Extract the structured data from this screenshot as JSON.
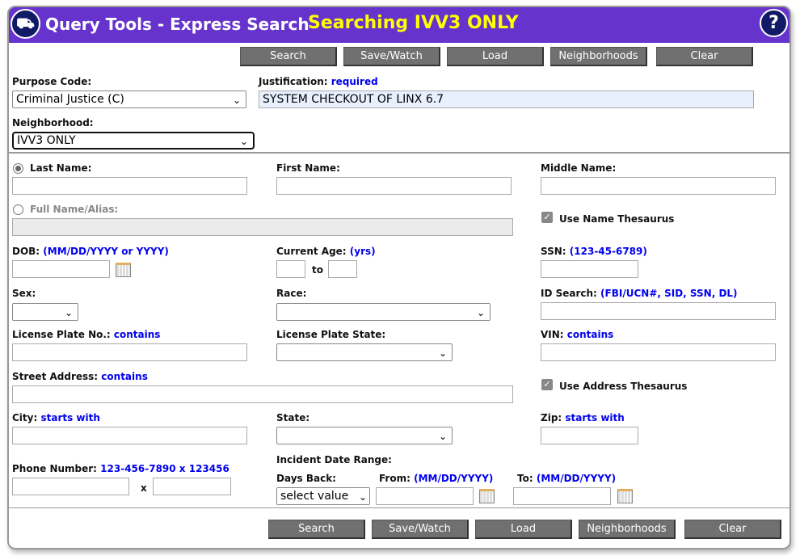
{
  "header": {
    "title": "Query Tools - Express Search",
    "subtitle": "Searching IVV3 ONLY",
    "help": "?",
    "accent": "#6633cc",
    "subtitle_color": "#ffff00"
  },
  "buttons": {
    "search": "Search",
    "save": "Save/Watch",
    "load": "Load",
    "neighborhoods": "Neighborhoods",
    "clear": "Clear"
  },
  "purpose": {
    "label": "Purpose Code:",
    "value": "Criminal Justice (C)"
  },
  "justification": {
    "label": "Justification:",
    "hint": "required",
    "value": "SYSTEM CHECKOUT OF LINX 6.7"
  },
  "neighborhood": {
    "label": "Neighborhood:",
    "value": "IVV3 ONLY"
  },
  "fields": {
    "last_name": "Last Name:",
    "first_name": "First Name:",
    "middle_name": "Middle Name:",
    "full_name": "Full Name/Alias:",
    "use_name_thesaurus": "Use Name Thesaurus",
    "dob": "DOB:",
    "dob_hint": "(MM/DD/YYYY or YYYY)",
    "age": "Current Age:",
    "age_hint": "(yrs)",
    "to": "to",
    "ssn": "SSN:",
    "ssn_hint": "(123-45-6789)",
    "sex": "Sex:",
    "race": "Race:",
    "id_search": "ID Search:",
    "id_hint": "(FBI/UCN#, SID, SSN, DL)",
    "plate": "License Plate No.:",
    "contains": "contains",
    "plate_state": "License Plate State:",
    "vin": "VIN:",
    "street": "Street Address:",
    "use_address_thesaurus": "Use Address Thesaurus",
    "city": "City:",
    "starts_with": "starts with",
    "state": "State:",
    "zip": "Zip:",
    "phone": "Phone Number:",
    "phone_hint": "123-456-7890 x 123456",
    "x": "x",
    "incident": "Incident Date Range:",
    "days_back": "Days Back:",
    "days_value": "select value",
    "from": "From:",
    "to_label": "To:",
    "date_hint": "(MM/DD/YYYY)"
  }
}
